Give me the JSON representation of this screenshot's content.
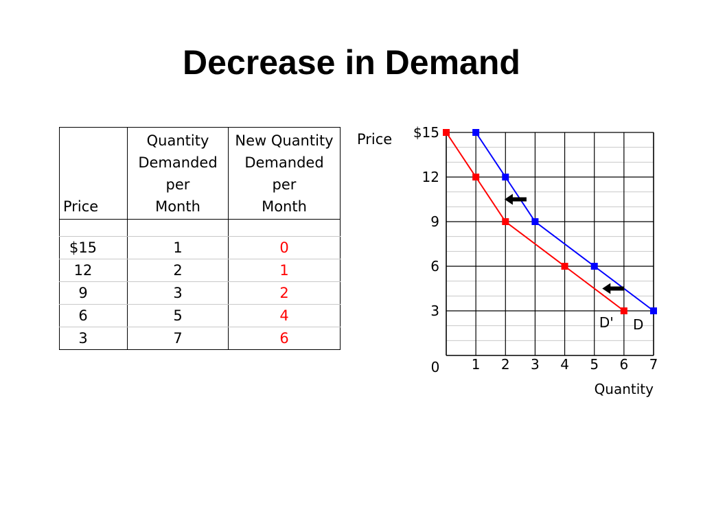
{
  "title": "Decrease in Demand",
  "table": {
    "headers": {
      "price": "Price",
      "quantity": [
        "Quantity",
        "Demanded",
        "per",
        "Month"
      ],
      "new_quantity": [
        "New Quantity",
        "Demanded",
        "per",
        "Month"
      ]
    },
    "rows": [
      {
        "price": "$15",
        "quantity": "1",
        "new_quantity": "0"
      },
      {
        "price": "12",
        "quantity": "2",
        "new_quantity": "1"
      },
      {
        "price": "9",
        "quantity": "3",
        "new_quantity": "2"
      },
      {
        "price": "6",
        "quantity": "5",
        "new_quantity": "4"
      },
      {
        "price": "3",
        "quantity": "7",
        "new_quantity": "6"
      }
    ]
  },
  "colors": {
    "original_demand": "#0000ff",
    "new_demand": "#ff0000",
    "grid": "#000000",
    "minor_grid": "#c8c8c8"
  },
  "chart_data": {
    "type": "line",
    "ylabel": "Price",
    "xlabel": "Quantity",
    "xlim": [
      0,
      7
    ],
    "ylim": [
      0,
      15
    ],
    "x_ticks": [
      {
        "value": 0,
        "label": "0"
      },
      {
        "value": 1,
        "label": "1"
      },
      {
        "value": 2,
        "label": "2"
      },
      {
        "value": 3,
        "label": "3"
      },
      {
        "value": 4,
        "label": "4"
      },
      {
        "value": 5,
        "label": "5"
      },
      {
        "value": 6,
        "label": "6"
      },
      {
        "value": 7,
        "label": "7"
      }
    ],
    "y_ticks": [
      {
        "value": 15,
        "label": "$15"
      },
      {
        "value": 12,
        "label": "12"
      },
      {
        "value": 9,
        "label": "9"
      },
      {
        "value": 6,
        "label": "6"
      },
      {
        "value": 3,
        "label": "3"
      }
    ],
    "grid": true,
    "series": [
      {
        "name": "D",
        "color": "#0000ff",
        "points": [
          {
            "x": 1,
            "y": 15
          },
          {
            "x": 2,
            "y": 12
          },
          {
            "x": 3,
            "y": 9
          },
          {
            "x": 5,
            "y": 6
          },
          {
            "x": 7,
            "y": 3
          }
        ]
      },
      {
        "name": "D'",
        "color": "#ff0000",
        "points": [
          {
            "x": 0,
            "y": 15
          },
          {
            "x": 1,
            "y": 12
          },
          {
            "x": 2,
            "y": 9
          },
          {
            "x": 4,
            "y": 6
          },
          {
            "x": 6,
            "y": 3
          }
        ]
      }
    ],
    "shift_arrows": [
      {
        "direction": "left",
        "x": 2.2,
        "y": 10.5
      },
      {
        "direction": "left",
        "x": 5.5,
        "y": 4.5
      }
    ]
  }
}
